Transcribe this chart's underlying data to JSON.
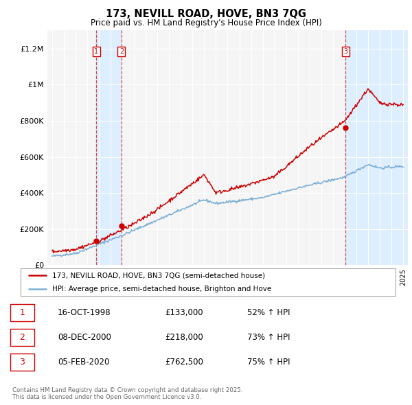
{
  "title1": "173, NEVILL ROAD, HOVE, BN3 7QG",
  "title2": "Price paid vs. HM Land Registry's House Price Index (HPI)",
  "ylabel_ticks": [
    "£0",
    "£200K",
    "£400K",
    "£600K",
    "£800K",
    "£1M",
    "£1.2M"
  ],
  "ytick_vals": [
    0,
    200000,
    400000,
    600000,
    800000,
    1000000,
    1200000
  ],
  "ylim": [
    0,
    1300000
  ],
  "xlim_start": 1994.6,
  "xlim_end": 2025.4,
  "sale_dates": [
    1998.79,
    2000.93,
    2020.09
  ],
  "sale_prices": [
    133000,
    218000,
    762500
  ],
  "sale_labels": [
    "1",
    "2",
    "3"
  ],
  "line_color_red": "#cc0000",
  "line_color_blue": "#7aadd4",
  "vline_color": "#cc0000",
  "shade_color": "#ddeeff",
  "legend_label_red": "173, NEVILL ROAD, HOVE, BN3 7QG (semi-detached house)",
  "legend_label_blue": "HPI: Average price, semi-detached house, Brighton and Hove",
  "table_data": [
    {
      "label": "1",
      "date": "16-OCT-1998",
      "price": "£133,000",
      "change": "52% ↑ HPI"
    },
    {
      "label": "2",
      "date": "08-DEC-2000",
      "price": "£218,000",
      "change": "73% ↑ HPI"
    },
    {
      "label": "3",
      "date": "05-FEB-2020",
      "price": "£762,500",
      "change": "75% ↑ HPI"
    }
  ],
  "footer": "Contains HM Land Registry data © Crown copyright and database right 2025.\nThis data is licensed under the Open Government Licence v3.0.",
  "background_color": "#ffffff",
  "plot_bg_color": "#f5f5f5"
}
